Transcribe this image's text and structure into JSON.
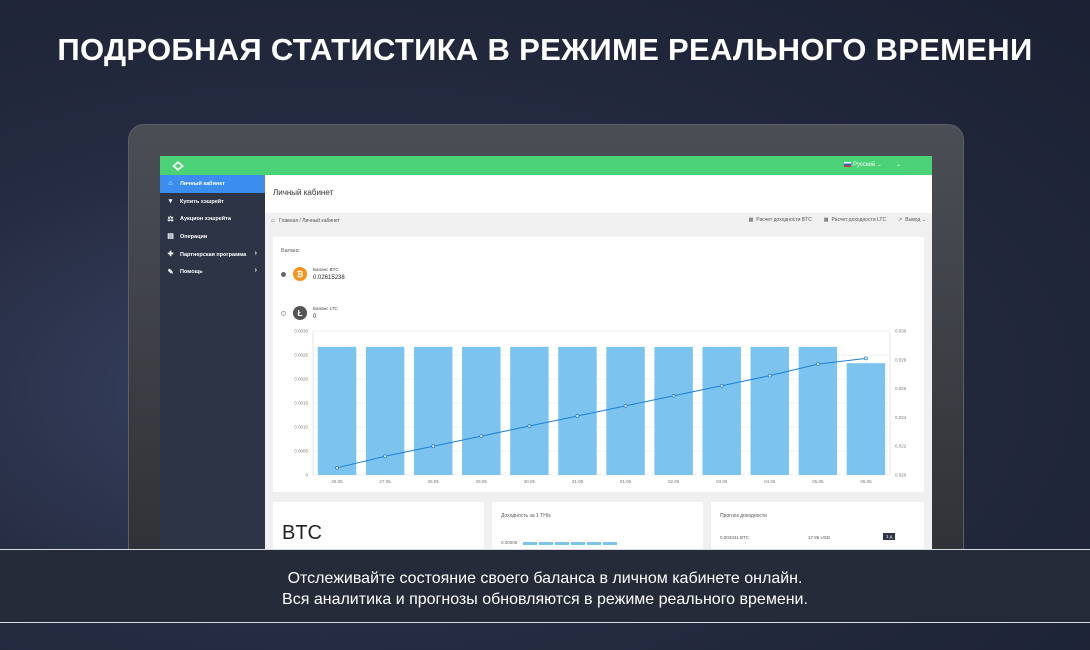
{
  "headline": "ПОДРОБНАЯ СТАТИСТИКА В РЕЖИМЕ РЕАЛЬНОГО ВРЕМЕНИ",
  "topbar": {
    "language": "Русский"
  },
  "sidebar": {
    "items": [
      {
        "label": "Личный кабинет",
        "icon": "home-icon",
        "active": true,
        "has_submenu": false
      },
      {
        "label": "Купить хэшрейт",
        "icon": "cart-icon",
        "active": false,
        "has_submenu": false
      },
      {
        "label": "Аукцион хэшрейта",
        "icon": "gavel-icon",
        "active": false,
        "has_submenu": false
      },
      {
        "label": "Операции",
        "icon": "receipt-icon",
        "active": false,
        "has_submenu": false
      },
      {
        "label": "Партнерская программа",
        "icon": "puzzle-icon",
        "active": false,
        "has_submenu": true
      },
      {
        "label": "Помощь",
        "icon": "pencil-icon",
        "active": false,
        "has_submenu": true
      }
    ]
  },
  "page": {
    "title": "Личный кабинет",
    "breadcrumb": [
      "Главная",
      "/",
      "Личный кабинет"
    ],
    "actions": [
      "Расчет доходности BTC",
      "Расчет доходности LTC",
      "Вывод"
    ]
  },
  "balance": {
    "label": "Баланс",
    "coins": [
      {
        "name": "Баланс BTC",
        "value": "0.02615238",
        "symbol": "₿",
        "selected": true
      },
      {
        "name": "Баланс LTC",
        "value": "0",
        "symbol": "Ł",
        "selected": false
      }
    ]
  },
  "chart_data": {
    "type": "bar",
    "categories": [
      "26.05",
      "27.05",
      "28.05",
      "29.05",
      "30.05",
      "31.05",
      "01.06",
      "02.06",
      "03.06",
      "04.06",
      "05.06",
      "06.06"
    ],
    "series": [
      {
        "type": "bar",
        "axis": "left",
        "values": [
          0.00267,
          0.00267,
          0.00267,
          0.00267,
          0.00267,
          0.00267,
          0.00267,
          0.00267,
          0.00267,
          0.00267,
          0.00267,
          0.00233
        ]
      },
      {
        "type": "line",
        "axis": "right",
        "values": [
          0.0205,
          0.0213,
          0.022,
          0.0227,
          0.0234,
          0.0241,
          0.0248,
          0.0255,
          0.0262,
          0.0269,
          0.0277,
          0.0281
        ]
      }
    ],
    "y_left_ticks": [
      "0",
      "0.0005",
      "0.0010",
      "0.0015",
      "0.0020",
      "0.0025",
      "0.0030"
    ],
    "y_right_ticks": [
      "0.020",
      "0.022",
      "0.024",
      "0.026",
      "0.028",
      "0.030"
    ],
    "ylim_left": [
      0,
      0.003
    ],
    "ylim_right": [
      0.02,
      0.03
    ],
    "colors": {
      "bar": "#7cc4ef",
      "bar_dark": "#5fb3e8",
      "line": "#1f7fd6"
    },
    "grid": true
  },
  "bottom": {
    "btc_title": "BTC",
    "yield_label": "Доходность за 1 TH/s",
    "yield_value": "0.00006",
    "forecast_label": "Прогноз доходности",
    "forecast_btc": "0.002341 BTC",
    "forecast_usd": "17.86 USD",
    "forecast_period": "1 д"
  },
  "caption": {
    "line1": "Отслеживайте состояние своего баланса в личном кабинете онлайн.",
    "line2": "Вся аналитика и прогнозы обновляются в режиме реального времени."
  }
}
